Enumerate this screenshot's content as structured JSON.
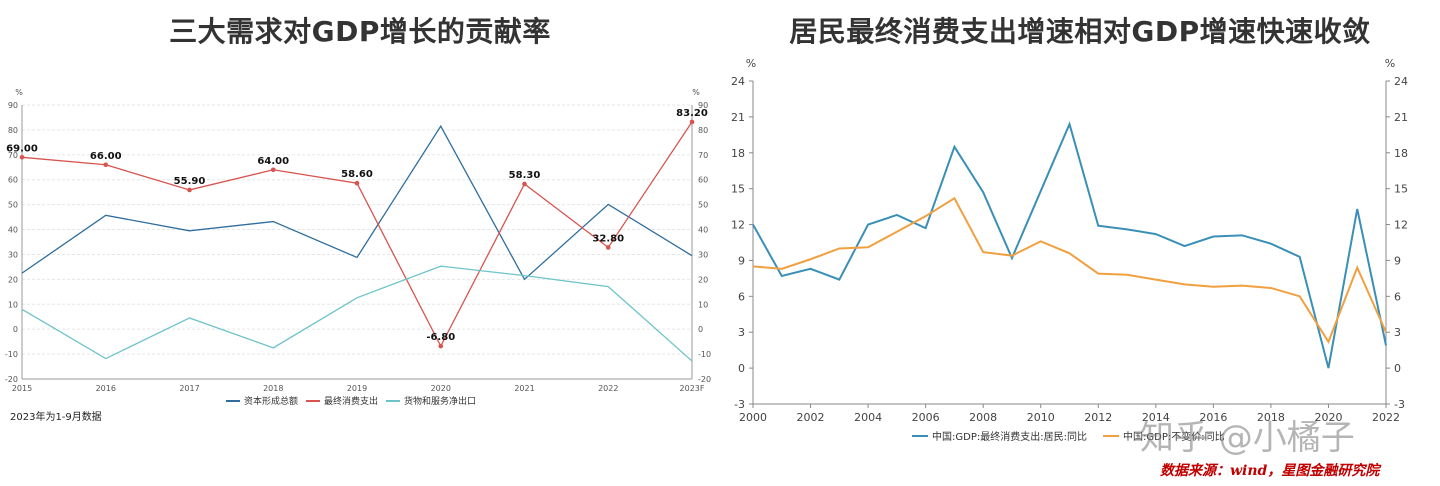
{
  "left": {
    "title": "三大需求对GDP增长的贡献率",
    "note": "2023年为1-9月数据",
    "chart_data": {
      "type": "line",
      "title": "三大需求对GDP增长的贡献率",
      "unit": "%",
      "categories": [
        "2015",
        "2016",
        "2017",
        "2018",
        "2019",
        "2020",
        "2021",
        "2022",
        "2023F"
      ],
      "ylim": [
        -20,
        90
      ],
      "yticks": [
        -20,
        -10,
        0,
        10,
        20,
        30,
        40,
        50,
        60,
        70,
        80,
        90
      ],
      "legend_position": "bottom",
      "grid": true,
      "series": [
        {
          "name": "资本形成总额",
          "color": "#2f6e9e",
          "values": [
            22.5,
            45.7,
            39.5,
            43.2,
            28.8,
            81.5,
            20.0,
            50.1,
            29.5
          ],
          "labels": false
        },
        {
          "name": "最终消费支出",
          "color": "#d9534f",
          "values": [
            69.0,
            66.0,
            55.9,
            64.0,
            58.6,
            -6.8,
            58.3,
            32.8,
            83.2
          ],
          "labels": true,
          "label_text": [
            "69.00",
            "66.00",
            "55.90",
            "64.00",
            "58.60",
            "-6.80",
            "58.30",
            "32.80",
            "83.20"
          ]
        },
        {
          "name": "货物和服务净出口",
          "color": "#6cc4c9",
          "values": [
            8.0,
            -11.8,
            4.5,
            -7.5,
            12.6,
            25.3,
            21.5,
            17.1,
            -12.8
          ],
          "labels": false
        }
      ]
    }
  },
  "right": {
    "title": "居民最终消费支出增速相对GDP增速快速收敛",
    "source": "数据来源：wind，星图金融研究院",
    "watermark": "知乎 @小橘子",
    "chart_data": {
      "type": "line",
      "title": "居民最终消费支出增速相对GDP增速快速收敛",
      "unit": "%",
      "x": [
        2000,
        2001,
        2002,
        2003,
        2004,
        2005,
        2006,
        2007,
        2008,
        2009,
        2010,
        2011,
        2012,
        2013,
        2014,
        2015,
        2016,
        2017,
        2018,
        2019,
        2020,
        2021,
        2022
      ],
      "xticks": [
        "2000",
        "2002",
        "2004",
        "2006",
        "2008",
        "2010",
        "2012",
        "2014",
        "2016",
        "2018",
        "2020",
        "2022"
      ],
      "ylim": [
        -3,
        24
      ],
      "yticks": [
        -3,
        0,
        3,
        6,
        9,
        12,
        15,
        18,
        21,
        24
      ],
      "legend_position": "bottom",
      "grid": false,
      "series": [
        {
          "name": "中国:GDP:最终消费支出:居民:同比",
          "color": "#3a8fb7",
          "values": [
            12.0,
            7.7,
            8.3,
            7.4,
            12.0,
            12.8,
            11.7,
            18.5,
            14.7,
            9.2,
            14.8,
            20.4,
            11.9,
            11.6,
            11.2,
            10.2,
            11.0,
            11.1,
            10.4,
            9.3,
            0.0,
            13.3,
            1.9
          ]
        },
        {
          "name": "中国:GDP:不变价:同比",
          "color": "#f0a040",
          "values": [
            8.5,
            8.3,
            9.1,
            10.0,
            10.1,
            11.4,
            12.7,
            14.2,
            9.7,
            9.4,
            10.6,
            9.6,
            7.9,
            7.8,
            7.4,
            7.0,
            6.8,
            6.9,
            6.7,
            6.0,
            2.2,
            8.4,
            3.0
          ]
        }
      ]
    }
  }
}
